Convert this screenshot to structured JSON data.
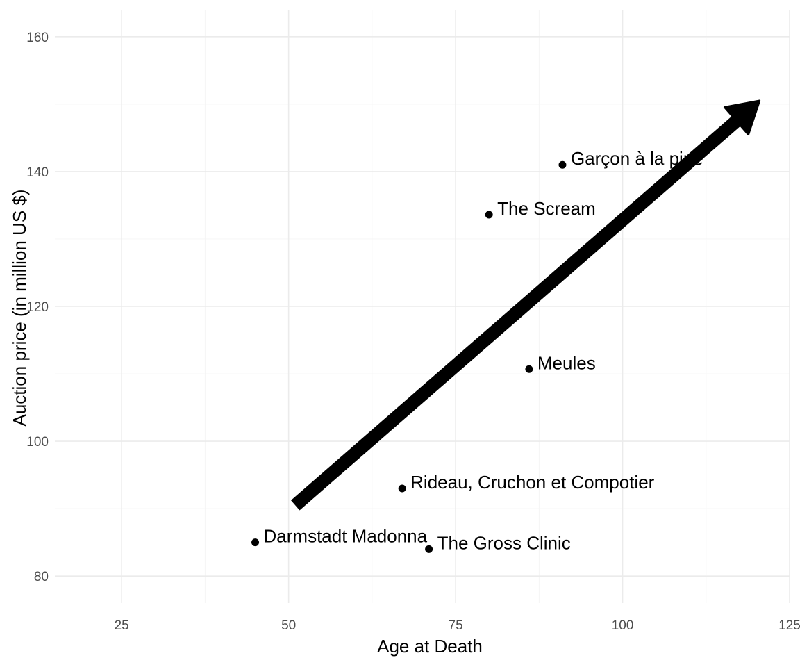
{
  "chart_data": {
    "type": "scatter",
    "xlabel": "Age at Death",
    "ylabel": "Auction price (in million US $)",
    "xlim": [
      15,
      125
    ],
    "ylim": [
      76,
      164
    ],
    "x_ticks": [
      25,
      50,
      75,
      100,
      125
    ],
    "y_ticks": [
      80,
      100,
      120,
      140,
      160
    ],
    "grid": true,
    "points": [
      {
        "label": "Garçon à la pipe",
        "x": 91,
        "y": 141
      },
      {
        "label": "The Scream",
        "x": 80,
        "y": 133.6
      },
      {
        "label": "Meules",
        "x": 86,
        "y": 110.7
      },
      {
        "label": "Rideau, Cruchon et Compotier",
        "x": 67,
        "y": 93
      },
      {
        "label": "Darmstadt Madonna",
        "x": 45,
        "y": 85
      },
      {
        "label": "The Gross Clinic",
        "x": 71,
        "y": 84
      }
    ],
    "arrow": {
      "from": {
        "x": 51,
        "y": 90.5
      },
      "to": {
        "x": 120.5,
        "y": 150.5
      },
      "color": "#000000"
    }
  }
}
